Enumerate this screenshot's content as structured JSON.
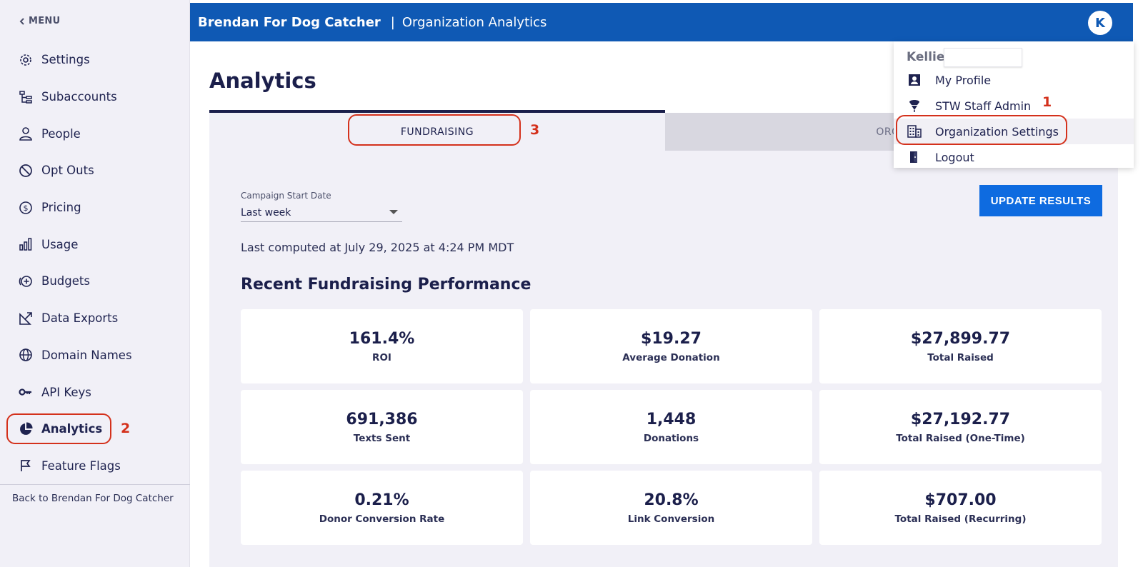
{
  "sidebar": {
    "menu_label": "MENU",
    "items": [
      {
        "label": "Settings",
        "icon": "gear-icon"
      },
      {
        "label": "Subaccounts",
        "icon": "hierarchy-icon"
      },
      {
        "label": "People",
        "icon": "person-icon"
      },
      {
        "label": "Opt Outs",
        "icon": "block-icon"
      },
      {
        "label": "Pricing",
        "icon": "dollar-icon"
      },
      {
        "label": "Usage",
        "icon": "bar-chart-icon"
      },
      {
        "label": "Budgets",
        "icon": "plus-circle-icon"
      },
      {
        "label": "Data Exports",
        "icon": "export-icon"
      },
      {
        "label": "Domain Names",
        "icon": "globe-icon"
      },
      {
        "label": "API Keys",
        "icon": "key-icon"
      },
      {
        "label": "Analytics",
        "icon": "pie-chart-icon",
        "active": true
      },
      {
        "label": "Feature Flags",
        "icon": "flag-icon"
      }
    ],
    "back_link": "Back to Brendan For Dog Catcher"
  },
  "header": {
    "org_name": "Brendan For Dog Catcher",
    "separator": "|",
    "page_name": "Organization Analytics",
    "avatar_initial": "K"
  },
  "main": {
    "title": "Analytics",
    "tabs": [
      {
        "label": "FUNDRAISING",
        "active": true
      },
      {
        "label": "ORGA"
      }
    ],
    "filter": {
      "label": "Campaign Start Date",
      "value": "Last week"
    },
    "update_button": "UPDATE RESULTS",
    "last_computed": "Last computed at July 29, 2025 at 4:24 PM MDT",
    "section_title": "Recent Fundraising Performance",
    "stats": [
      {
        "value": "161.4%",
        "label": "ROI"
      },
      {
        "value": "$19.27",
        "label": "Average Donation"
      },
      {
        "value": "$27,899.77",
        "label": "Total Raised"
      },
      {
        "value": "691,386",
        "label": "Texts Sent"
      },
      {
        "value": "1,448",
        "label": "Donations"
      },
      {
        "value": "$27,192.77",
        "label": "Total Raised (One-Time)"
      },
      {
        "value": "0.21%",
        "label": "Donor Conversion Rate"
      },
      {
        "value": "20.8%",
        "label": "Link Conversion"
      },
      {
        "value": "$707.00",
        "label": "Total Raised (Recurring)"
      }
    ]
  },
  "user_menu": {
    "user_name": "Kellie",
    "items": [
      {
        "label": "My Profile",
        "icon": "profile-icon"
      },
      {
        "label": "STW Staff Admin",
        "icon": "admin-icon"
      },
      {
        "label": "Organization Settings",
        "icon": "building-icon"
      },
      {
        "label": "Logout",
        "icon": "logout-icon"
      }
    ]
  },
  "annotations": {
    "step1": "1",
    "step2": "2",
    "step3": "3",
    "color": "#d4311c"
  },
  "colors": {
    "header_bg": "#0f59b4",
    "button_bg": "#0e6be0",
    "panel_bg": "#f1f0f7",
    "text_dark": "#1b1f4b"
  }
}
